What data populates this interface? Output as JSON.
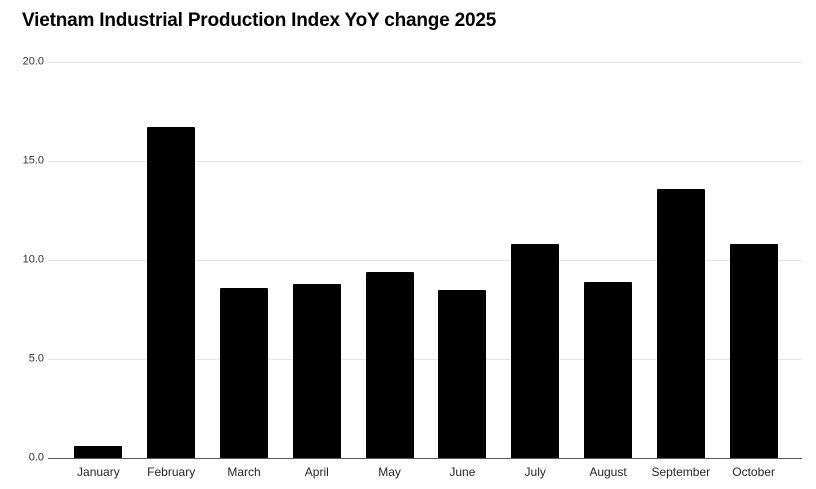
{
  "page": {
    "background_color": "#ffffff"
  },
  "chart_data": {
    "type": "bar",
    "title": "Vietnam Industrial Production Index YoY change 2025",
    "xlabel": "",
    "ylabel": "",
    "categories": [
      "January",
      "February",
      "March",
      "April",
      "May",
      "June",
      "July",
      "August",
      "September",
      "October"
    ],
    "values": [
      0.6,
      16.7,
      8.6,
      8.8,
      9.4,
      8.5,
      10.8,
      8.9,
      13.6,
      10.8
    ],
    "series_name": "Industrial Production Index YoY change (%)",
    "ylim": [
      0,
      20
    ],
    "yticks": [
      {
        "value": 0,
        "label": "0.0"
      },
      {
        "value": 5,
        "label": "5.0"
      },
      {
        "value": 10,
        "label": "10.0"
      },
      {
        "value": 15,
        "label": "15.0"
      },
      {
        "value": 20,
        "label": "20.0"
      }
    ],
    "grid": true,
    "legend_position": "none",
    "bar_color": "#000000",
    "gridline_color": "#e6e6e6",
    "axis_line_color": "#595959",
    "tick_label_color": "#333333",
    "category_label_color": "#262626",
    "title_color": "#000000"
  }
}
